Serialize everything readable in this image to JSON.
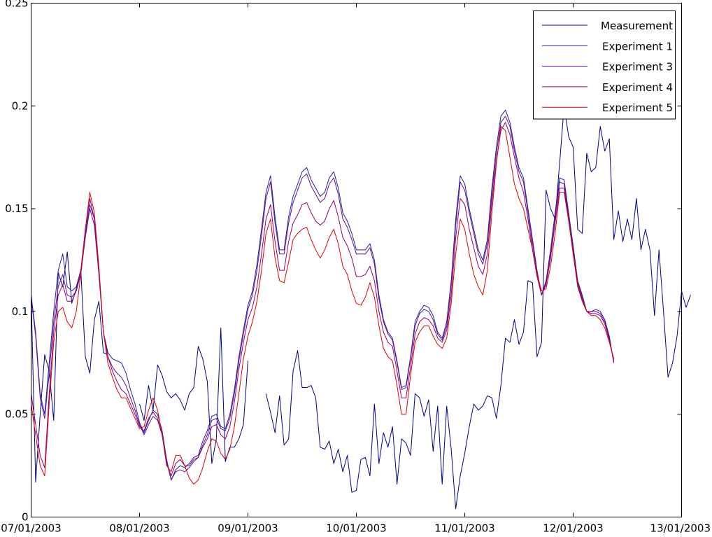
{
  "chart_data": {
    "type": "line",
    "title": "",
    "xlabel": "",
    "ylabel": "",
    "xlim": [
      0,
      144
    ],
    "ylim": [
      0,
      0.25
    ],
    "x_tick_labels": [
      "07/01/2003",
      "08/01/2003",
      "09/01/2003",
      "10/01/2003",
      "11/01/2003",
      "12/01/2003",
      "13/01/2003"
    ],
    "x_tick_values": [
      0,
      24,
      48,
      72,
      96,
      120,
      144
    ],
    "y_ticks": [
      0,
      0.05,
      0.1,
      0.15,
      0.2,
      0.25
    ],
    "y_tick_labels": [
      "0",
      "0.05",
      "0.1",
      "0.15",
      "0.2",
      "0.25"
    ],
    "grid": false,
    "legend_position": "top-right",
    "x_step_hours": 1,
    "series": [
      {
        "name": "Measurement",
        "color": "#00008b",
        "values": [
          0.109,
          0.017,
          0.05,
          0.079,
          0.071,
          0.047,
          0.119,
          0.112,
          0.129,
          0.104,
          0.111,
          0.12,
          0.078,
          0.07,
          0.096,
          0.105,
          0.08,
          0.079,
          0.068,
          0.061,
          0.058,
          0.06,
          0.062,
          0.064,
          0.055,
          0.047,
          0.064,
          0.052,
          0.074,
          0.069,
          0.061,
          0.058,
          0.06,
          0.057,
          0.052,
          0.06,
          0.063,
          0.083,
          0.077,
          0.066,
          0.026,
          0.038,
          0.092,
          0.027,
          0.034,
          0.034,
          0.038,
          0.045,
          0.076,
          0.091,
          0.081,
          0.07,
          0.06,
          0.051,
          0.041,
          0.059,
          0.035,
          0.038,
          0.071,
          0.081,
          0.063,
          0.063,
          0.064,
          0.058,
          0.034,
          0.033,
          0.037,
          0.026,
          0.033,
          0.022,
          0.03,
          0.012,
          0.013,
          0.028,
          0.029,
          0.02,
          0.055,
          0.026,
          0.041,
          0.034,
          0.044,
          0.016,
          0.038,
          0.036,
          0.03,
          0.06,
          0.058,
          0.049,
          0.057,
          0.032,
          0.054,
          0.016,
          0.054,
          0.033,
          0.004,
          0.02,
          0.031,
          0.044,
          0.055,
          0.052,
          0.054,
          0.059,
          0.058,
          0.048,
          0.064,
          0.087,
          0.085,
          0.096,
          0.084,
          0.09,
          0.115,
          0.114,
          0.078,
          0.085,
          0.159,
          0.15,
          0.145,
          0.172,
          0.2,
          0.185,
          0.18,
          0.14,
          0.138,
          0.177,
          0.168,
          0.17,
          0.19,
          0.178,
          0.184,
          0.135,
          0.149,
          0.134,
          0.145,
          0.135,
          0.155,
          0.13,
          0.14,
          0.13,
          0.098,
          0.13,
          0.1,
          0.068,
          0.075,
          0.088,
          0.11,
          0.102,
          0.108
        ],
        "gaps": [
          [
            17,
            24
          ],
          [
            48,
            52
          ]
        ]
      },
      {
        "name": "Experiment 1",
        "color": "#2020a0",
        "values": [
          0.108,
          0.09,
          0.06,
          0.05,
          0.075,
          0.1,
          0.12,
          0.128,
          0.112,
          0.11,
          0.112,
          0.12,
          0.138,
          0.152,
          0.145,
          0.12,
          0.09,
          0.08,
          0.077,
          0.076,
          0.075,
          0.07,
          0.062,
          0.055,
          0.046,
          0.041,
          0.047,
          0.052,
          0.05,
          0.042,
          0.028,
          0.018,
          0.023,
          0.025,
          0.024,
          0.026,
          0.029,
          0.03,
          0.037,
          0.042,
          0.049,
          0.05,
          0.044,
          0.043,
          0.05,
          0.062,
          0.078,
          0.091,
          0.103,
          0.11,
          0.123,
          0.14,
          0.158,
          0.166,
          0.146,
          0.13,
          0.13,
          0.146,
          0.156,
          0.162,
          0.168,
          0.17,
          0.164,
          0.16,
          0.156,
          0.158,
          0.165,
          0.168,
          0.16,
          0.148,
          0.144,
          0.138,
          0.13,
          0.13,
          0.13,
          0.133,
          0.125,
          0.108,
          0.096,
          0.09,
          0.087,
          0.076,
          0.063,
          0.064,
          0.078,
          0.095,
          0.1,
          0.103,
          0.102,
          0.098,
          0.09,
          0.087,
          0.095,
          0.115,
          0.145,
          0.166,
          0.162,
          0.15,
          0.14,
          0.13,
          0.125,
          0.135,
          0.16,
          0.18,
          0.195,
          0.198,
          0.192,
          0.18,
          0.17,
          0.165,
          0.15,
          0.135,
          0.12,
          0.108,
          0.115,
          0.13,
          0.148,
          0.165,
          0.164,
          0.148,
          0.132,
          0.115,
          0.108,
          0.1,
          0.1,
          0.101,
          0.1,
          0.096,
          0.088,
          0.075
        ]
      },
      {
        "name": "Experiment 3",
        "color": "#6010a0",
        "values": [
          0.107,
          0.088,
          0.058,
          0.048,
          0.07,
          0.095,
          0.112,
          0.118,
          0.108,
          0.107,
          0.11,
          0.118,
          0.136,
          0.15,
          0.142,
          0.118,
          0.09,
          0.078,
          0.073,
          0.07,
          0.068,
          0.064,
          0.058,
          0.052,
          0.045,
          0.04,
          0.045,
          0.049,
          0.047,
          0.04,
          0.027,
          0.018,
          0.022,
          0.023,
          0.022,
          0.024,
          0.027,
          0.029,
          0.035,
          0.04,
          0.047,
          0.048,
          0.043,
          0.042,
          0.048,
          0.06,
          0.076,
          0.089,
          0.101,
          0.108,
          0.12,
          0.137,
          0.155,
          0.163,
          0.143,
          0.128,
          0.128,
          0.143,
          0.153,
          0.159,
          0.165,
          0.167,
          0.161,
          0.157,
          0.153,
          0.155,
          0.162,
          0.165,
          0.157,
          0.145,
          0.141,
          0.135,
          0.128,
          0.128,
          0.128,
          0.131,
          0.123,
          0.106,
          0.095,
          0.089,
          0.086,
          0.075,
          0.062,
          0.063,
          0.077,
          0.093,
          0.099,
          0.101,
          0.1,
          0.096,
          0.089,
          0.086,
          0.093,
          0.113,
          0.142,
          0.163,
          0.159,
          0.148,
          0.138,
          0.128,
          0.123,
          0.133,
          0.157,
          0.177,
          0.192,
          0.195,
          0.19,
          0.178,
          0.168,
          0.163,
          0.148,
          0.133,
          0.119,
          0.108,
          0.114,
          0.128,
          0.146,
          0.163,
          0.162,
          0.146,
          0.13,
          0.114,
          0.107,
          0.1,
          0.1,
          0.1,
          0.099,
          0.095,
          0.087,
          0.075
        ]
      },
      {
        "name": "Experiment 4",
        "color": "#900070",
        "values": [
          0.06,
          0.045,
          0.03,
          0.024,
          0.06,
          0.09,
          0.108,
          0.113,
          0.105,
          0.105,
          0.11,
          0.12,
          0.14,
          0.155,
          0.145,
          0.12,
          0.09,
          0.078,
          0.071,
          0.066,
          0.062,
          0.06,
          0.055,
          0.05,
          0.044,
          0.042,
          0.048,
          0.051,
          0.048,
          0.04,
          0.026,
          0.02,
          0.026,
          0.028,
          0.025,
          0.025,
          0.028,
          0.029,
          0.034,
          0.038,
          0.044,
          0.045,
          0.04,
          0.038,
          0.044,
          0.056,
          0.072,
          0.085,
          0.096,
          0.102,
          0.112,
          0.128,
          0.145,
          0.152,
          0.134,
          0.12,
          0.12,
          0.134,
          0.143,
          0.147,
          0.152,
          0.153,
          0.148,
          0.144,
          0.142,
          0.144,
          0.15,
          0.154,
          0.146,
          0.136,
          0.132,
          0.126,
          0.117,
          0.117,
          0.118,
          0.122,
          0.115,
          0.1,
          0.09,
          0.085,
          0.083,
          0.071,
          0.058,
          0.058,
          0.073,
          0.089,
          0.095,
          0.097,
          0.096,
          0.093,
          0.087,
          0.085,
          0.091,
          0.108,
          0.136,
          0.155,
          0.152,
          0.14,
          0.131,
          0.122,
          0.118,
          0.128,
          0.153,
          0.173,
          0.188,
          0.192,
          0.186,
          0.175,
          0.165,
          0.158,
          0.145,
          0.13,
          0.117,
          0.108,
          0.113,
          0.126,
          0.143,
          0.16,
          0.16,
          0.145,
          0.128,
          0.113,
          0.106,
          0.1,
          0.099,
          0.099,
          0.098,
          0.094,
          0.086,
          0.076
        ]
      },
      {
        "name": "Experiment 5",
        "color": "#e00000",
        "values": [
          0.055,
          0.04,
          0.025,
          0.02,
          0.055,
          0.085,
          0.1,
          0.102,
          0.095,
          0.092,
          0.1,
          0.118,
          0.14,
          0.158,
          0.148,
          0.122,
          0.09,
          0.075,
          0.068,
          0.062,
          0.058,
          0.058,
          0.053,
          0.048,
          0.043,
          0.044,
          0.052,
          0.058,
          0.052,
          0.04,
          0.025,
          0.022,
          0.03,
          0.03,
          0.025,
          0.019,
          0.016,
          0.018,
          0.024,
          0.032,
          0.038,
          0.037,
          0.031,
          0.028,
          0.033,
          0.044,
          0.06,
          0.077,
          0.088,
          0.095,
          0.105,
          0.12,
          0.138,
          0.145,
          0.126,
          0.115,
          0.114,
          0.124,
          0.135,
          0.138,
          0.14,
          0.141,
          0.135,
          0.13,
          0.126,
          0.13,
          0.136,
          0.14,
          0.133,
          0.122,
          0.118,
          0.11,
          0.104,
          0.103,
          0.107,
          0.114,
          0.107,
          0.093,
          0.082,
          0.078,
          0.076,
          0.064,
          0.05,
          0.05,
          0.069,
          0.085,
          0.09,
          0.093,
          0.093,
          0.088,
          0.084,
          0.082,
          0.087,
          0.104,
          0.128,
          0.145,
          0.14,
          0.128,
          0.118,
          0.112,
          0.108,
          0.12,
          0.148,
          0.172,
          0.19,
          0.188,
          0.175,
          0.162,
          0.155,
          0.15,
          0.14,
          0.13,
          0.118,
          0.11,
          0.111,
          0.122,
          0.138,
          0.158,
          0.158,
          0.144,
          0.128,
          0.112,
          0.105,
          0.1,
          0.098,
          0.098,
          0.096,
          0.092,
          0.085,
          0.077
        ]
      }
    ]
  }
}
